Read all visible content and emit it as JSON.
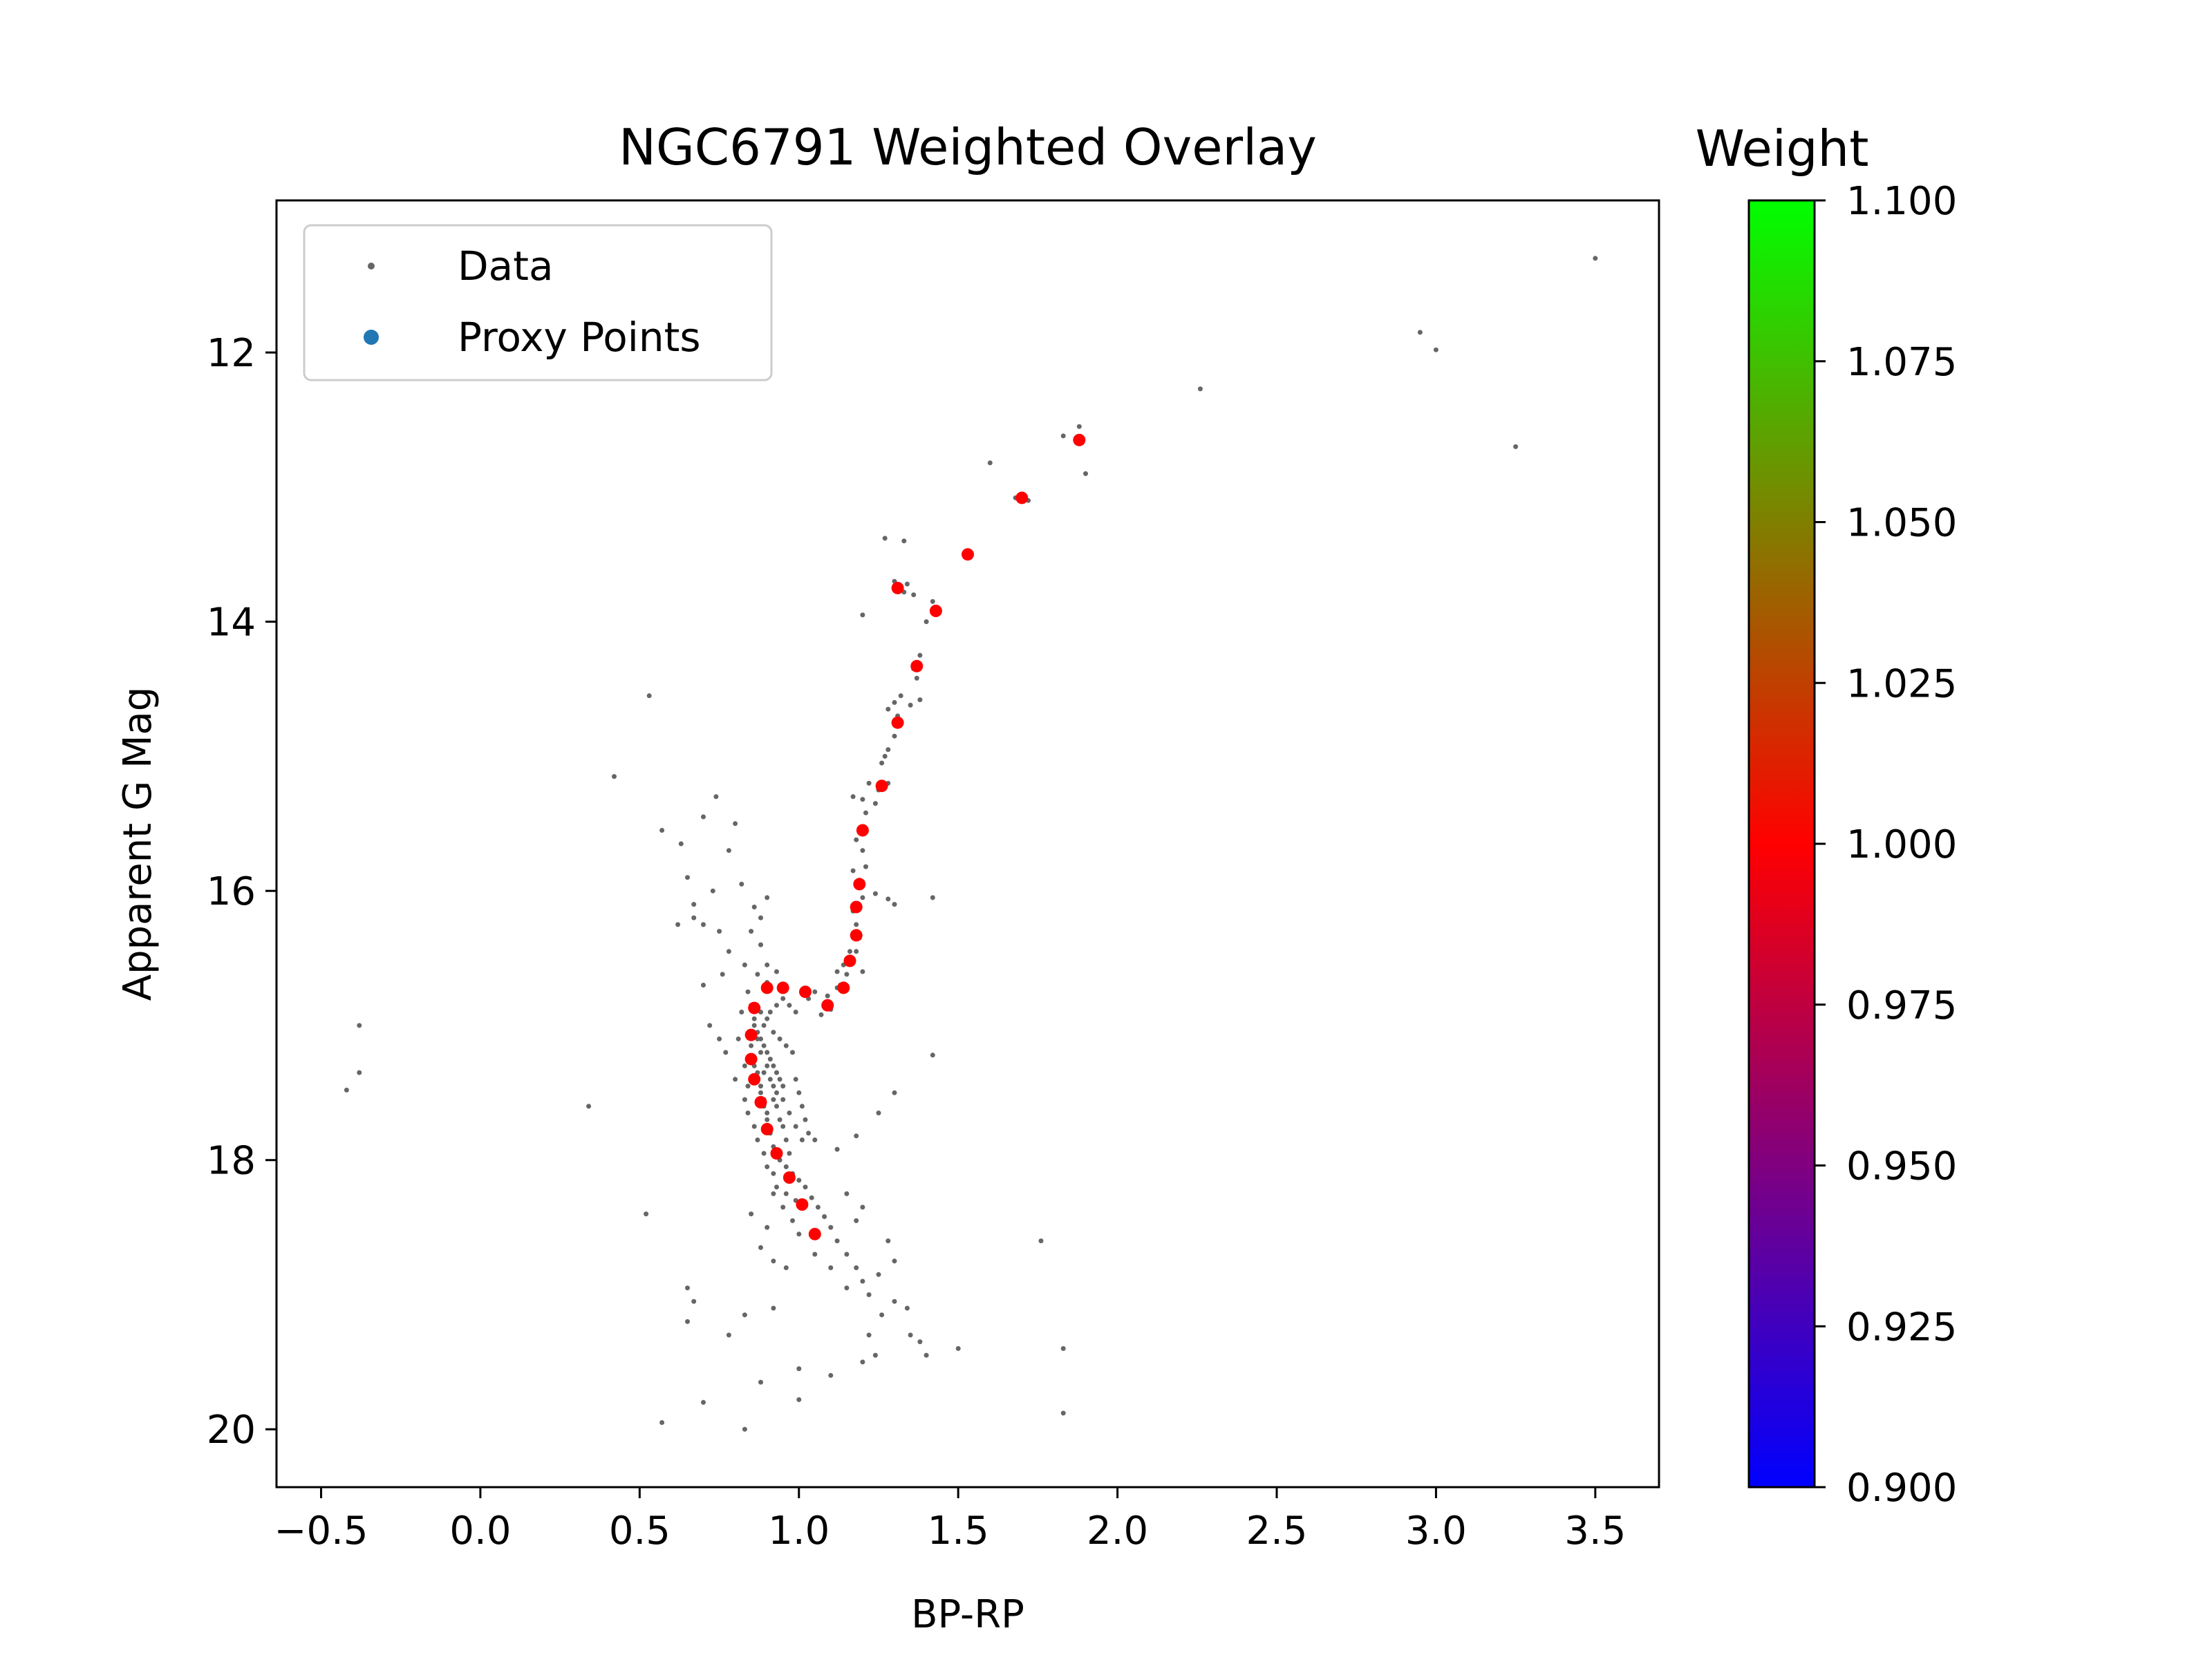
{
  "chart_data": {
    "type": "scatter",
    "title": "NGC6791 Weighted Overlay",
    "xlabel": "BP-RP",
    "ylabel": "Apparent G Mag",
    "xlim": [
      -0.64,
      3.7
    ],
    "ylim": [
      20.43,
      10.87
    ],
    "y_inverted": true,
    "x_ticks": [
      "−0.5",
      "0.0",
      "0.5",
      "1.0",
      "1.5",
      "2.0",
      "2.5",
      "3.0",
      "3.5"
    ],
    "x_tick_values": [
      -0.5,
      0.0,
      0.5,
      1.0,
      1.5,
      2.0,
      2.5,
      3.0,
      3.5
    ],
    "y_ticks": [
      "12",
      "14",
      "16",
      "18",
      "20"
    ],
    "y_tick_values": [
      12,
      14,
      16,
      18,
      20
    ],
    "grid": false,
    "legend": {
      "placement": "top-left",
      "entries": [
        {
          "label": "Data",
          "color": "#666666",
          "marker": "small-dot"
        },
        {
          "label": "Proxy Points",
          "color": "#1f77b4",
          "marker": "dot"
        }
      ]
    },
    "colorbar": {
      "title": "Weight",
      "range": [
        0.9,
        1.1
      ],
      "ticks": [
        "0.900",
        "0.925",
        "0.950",
        "0.975",
        "1.000",
        "1.025",
        "1.050",
        "1.075",
        "1.100"
      ],
      "tick_values": [
        0.9,
        0.925,
        0.95,
        0.975,
        1.0,
        1.025,
        1.05,
        1.075,
        1.1
      ],
      "colormap_stops": [
        "#0000ff",
        "#ff0000",
        "#00ff00"
      ]
    },
    "series": [
      {
        "name": "Data",
        "color": "#666666",
        "points": [
          [
            3.5,
            11.3
          ],
          [
            2.95,
            11.85
          ],
          [
            3.0,
            11.98
          ],
          [
            2.26,
            12.27
          ],
          [
            3.25,
            12.7
          ],
          [
            1.88,
            12.55
          ],
          [
            1.83,
            12.62
          ],
          [
            1.9,
            12.9
          ],
          [
            1.6,
            12.82
          ],
          [
            1.68,
            13.08
          ],
          [
            1.72,
            13.1
          ],
          [
            1.27,
            13.38
          ],
          [
            1.33,
            13.4
          ],
          [
            1.3,
            13.7
          ],
          [
            1.34,
            13.72
          ],
          [
            1.36,
            13.8
          ],
          [
            1.33,
            13.78
          ],
          [
            1.2,
            13.95
          ],
          [
            1.42,
            13.85
          ],
          [
            1.4,
            14.0
          ],
          [
            1.38,
            14.25
          ],
          [
            1.36,
            14.35
          ],
          [
            1.37,
            14.42
          ],
          [
            1.32,
            14.55
          ],
          [
            1.35,
            14.62
          ],
          [
            1.3,
            14.6
          ],
          [
            1.28,
            14.65
          ],
          [
            1.31,
            14.7
          ],
          [
            1.38,
            14.58
          ],
          [
            1.3,
            14.85
          ],
          [
            1.28,
            14.95
          ],
          [
            1.27,
            15.0
          ],
          [
            1.26,
            15.05
          ],
          [
            1.28,
            15.2
          ],
          [
            1.22,
            15.2
          ],
          [
            1.25,
            15.25
          ],
          [
            1.24,
            15.35
          ],
          [
            1.17,
            15.3
          ],
          [
            1.2,
            15.32
          ],
          [
            1.21,
            15.42
          ],
          [
            1.2,
            15.55
          ],
          [
            1.18,
            15.62
          ],
          [
            1.2,
            15.7
          ],
          [
            1.21,
            15.82
          ],
          [
            1.17,
            15.85
          ],
          [
            1.19,
            15.92
          ],
          [
            1.2,
            16.05
          ],
          [
            1.24,
            16.02
          ],
          [
            1.28,
            16.06
          ],
          [
            1.3,
            16.1
          ],
          [
            1.42,
            16.05
          ],
          [
            1.17,
            16.15
          ],
          [
            1.18,
            16.25
          ],
          [
            1.19,
            16.35
          ],
          [
            1.18,
            16.45
          ],
          [
            1.16,
            16.45
          ],
          [
            1.14,
            16.55
          ],
          [
            1.15,
            16.62
          ],
          [
            1.13,
            16.7
          ],
          [
            1.12,
            16.72
          ],
          [
            1.09,
            16.78
          ],
          [
            1.05,
            16.75
          ],
          [
            1.03,
            16.8
          ],
          [
            1.1,
            16.88
          ],
          [
            1.07,
            16.92
          ],
          [
            1.2,
            16.6
          ],
          [
            1.12,
            16.6
          ],
          [
            0.53,
            14.55
          ],
          [
            0.42,
            15.15
          ],
          [
            0.74,
            15.3
          ],
          [
            0.57,
            15.55
          ],
          [
            0.63,
            15.65
          ],
          [
            0.7,
            15.45
          ],
          [
            0.8,
            15.5
          ],
          [
            0.78,
            15.7
          ],
          [
            0.65,
            15.9
          ],
          [
            0.67,
            16.1
          ],
          [
            0.73,
            16.0
          ],
          [
            0.82,
            15.95
          ],
          [
            0.62,
            16.25
          ],
          [
            0.67,
            16.2
          ],
          [
            0.7,
            16.25
          ],
          [
            0.75,
            16.3
          ],
          [
            0.78,
            16.45
          ],
          [
            0.83,
            16.55
          ],
          [
            0.85,
            16.3
          ],
          [
            0.88,
            16.2
          ],
          [
            0.86,
            16.12
          ],
          [
            0.9,
            16.05
          ],
          [
            0.88,
            16.4
          ],
          [
            0.9,
            16.55
          ],
          [
            0.93,
            16.6
          ],
          [
            0.9,
            16.68
          ],
          [
            0.87,
            16.62
          ],
          [
            0.76,
            16.62
          ],
          [
            0.7,
            16.7
          ],
          [
            0.72,
            17.0
          ],
          [
            0.75,
            17.1
          ],
          [
            0.77,
            17.2
          ],
          [
            0.8,
            17.4
          ],
          [
            0.83,
            17.3
          ],
          [
            0.81,
            17.1
          ],
          [
            0.82,
            16.9
          ],
          [
            0.84,
            16.75
          ],
          [
            0.85,
            16.85
          ],
          [
            0.86,
            16.95
          ],
          [
            0.87,
            17.05
          ],
          [
            0.88,
            17.1
          ],
          [
            0.89,
            17.15
          ],
          [
            0.9,
            17.2
          ],
          [
            0.91,
            17.25
          ],
          [
            0.92,
            17.3
          ],
          [
            0.93,
            17.35
          ],
          [
            0.94,
            17.4
          ],
          [
            0.95,
            17.45
          ],
          [
            0.86,
            17.3
          ],
          [
            0.87,
            17.4
          ],
          [
            0.88,
            17.5
          ],
          [
            0.89,
            17.6
          ],
          [
            0.9,
            17.7
          ],
          [
            0.91,
            17.8
          ],
          [
            0.92,
            17.9
          ],
          [
            0.93,
            17.95
          ],
          [
            0.94,
            18.0
          ],
          [
            0.96,
            18.05
          ],
          [
            0.98,
            18.1
          ],
          [
            1.0,
            18.15
          ],
          [
            1.02,
            18.2
          ],
          [
            1.04,
            18.28
          ],
          [
            1.06,
            18.35
          ],
          [
            1.08,
            18.42
          ],
          [
            1.1,
            18.5
          ],
          [
            1.12,
            18.6
          ],
          [
            1.15,
            18.7
          ],
          [
            1.18,
            18.8
          ],
          [
            1.2,
            18.9
          ],
          [
            0.95,
            17.55
          ],
          [
            0.97,
            17.65
          ],
          [
            0.99,
            17.75
          ],
          [
            1.01,
            17.85
          ],
          [
            1.05,
            17.85
          ],
          [
            1.12,
            17.92
          ],
          [
            1.18,
            17.82
          ],
          [
            1.25,
            17.65
          ],
          [
            1.3,
            17.5
          ],
          [
            1.42,
            17.22
          ],
          [
            0.92,
            18.25
          ],
          [
            0.95,
            18.35
          ],
          [
            0.98,
            18.45
          ],
          [
            1.0,
            18.55
          ],
          [
            0.9,
            18.5
          ],
          [
            0.85,
            18.4
          ],
          [
            0.88,
            18.65
          ],
          [
            0.92,
            18.75
          ],
          [
            0.96,
            18.8
          ],
          [
            1.05,
            18.7
          ],
          [
            1.1,
            18.8
          ],
          [
            1.15,
            18.95
          ],
          [
            1.22,
            19.0
          ],
          [
            1.25,
            18.85
          ],
          [
            1.18,
            18.45
          ],
          [
            1.2,
            18.35
          ],
          [
            1.15,
            18.25
          ],
          [
            1.28,
            18.6
          ],
          [
            1.3,
            18.75
          ],
          [
            1.3,
            19.05
          ],
          [
            1.34,
            19.1
          ],
          [
            1.26,
            19.15
          ],
          [
            1.22,
            19.3
          ],
          [
            1.24,
            19.45
          ],
          [
            1.2,
            19.5
          ],
          [
            1.35,
            19.3
          ],
          [
            1.38,
            19.35
          ],
          [
            1.4,
            19.45
          ],
          [
            1.5,
            19.4
          ],
          [
            1.83,
            19.4
          ],
          [
            1.76,
            18.6
          ],
          [
            1.83,
            19.88
          ],
          [
            1.0,
            19.55
          ],
          [
            1.1,
            19.6
          ],
          [
            0.88,
            19.65
          ],
          [
            0.78,
            19.3
          ],
          [
            0.83,
            19.15
          ],
          [
            0.92,
            19.1
          ],
          [
            0.65,
            18.95
          ],
          [
            0.67,
            19.05
          ],
          [
            0.65,
            19.2
          ],
          [
            0.57,
            19.95
          ],
          [
            0.7,
            19.8
          ],
          [
            0.83,
            20.0
          ],
          [
            1.0,
            19.78
          ],
          [
            0.52,
            18.4
          ],
          [
            0.34,
            17.6
          ],
          [
            -0.38,
            17.0
          ],
          [
            -0.38,
            17.35
          ],
          [
            -0.42,
            17.48
          ],
          [
            0.86,
            17.0
          ],
          [
            0.88,
            16.9
          ],
          [
            0.9,
            16.95
          ],
          [
            0.92,
            17.05
          ],
          [
            0.94,
            17.1
          ],
          [
            0.96,
            17.15
          ],
          [
            0.85,
            17.15
          ],
          [
            0.86,
            17.25
          ],
          [
            0.87,
            17.35
          ],
          [
            0.88,
            17.45
          ],
          [
            0.89,
            17.55
          ],
          [
            0.9,
            17.65
          ],
          [
            0.92,
            17.55
          ],
          [
            0.93,
            17.6
          ],
          [
            0.94,
            17.7
          ],
          [
            0.95,
            17.75
          ],
          [
            0.96,
            17.85
          ],
          [
            0.97,
            17.95
          ],
          [
            0.91,
            17.4
          ],
          [
            0.92,
            17.45
          ],
          [
            0.93,
            17.5
          ],
          [
            0.89,
            17.35
          ],
          [
            0.9,
            17.3
          ],
          [
            0.88,
            17.2
          ],
          [
            0.87,
            17.1
          ],
          [
            0.89,
            17.0
          ],
          [
            0.91,
            16.9
          ],
          [
            0.93,
            16.85
          ],
          [
            0.95,
            16.8
          ],
          [
            0.97,
            16.85
          ],
          [
            0.99,
            16.9
          ],
          [
            0.98,
            17.2
          ],
          [
            0.99,
            17.4
          ],
          [
            1.0,
            17.5
          ],
          [
            1.01,
            17.6
          ],
          [
            1.02,
            17.7
          ],
          [
            1.03,
            17.8
          ],
          [
            0.84,
            17.45
          ],
          [
            0.83,
            17.55
          ],
          [
            0.84,
            17.65
          ],
          [
            0.86,
            17.75
          ],
          [
            0.87,
            17.85
          ],
          [
            0.89,
            17.95
          ],
          [
            0.9,
            18.05
          ],
          [
            0.92,
            18.1
          ],
          [
            0.93,
            18.2
          ],
          [
            0.96,
            18.25
          ],
          [
            0.99,
            18.3
          ]
        ]
      },
      {
        "name": "Proxy Points",
        "color": "#ff0000",
        "points": [
          [
            1.88,
            12.65
          ],
          [
            1.7,
            13.08
          ],
          [
            1.53,
            13.5
          ],
          [
            1.31,
            13.75
          ],
          [
            1.43,
            13.92
          ],
          [
            1.37,
            14.33
          ],
          [
            1.31,
            14.75
          ],
          [
            1.26,
            15.22
          ],
          [
            1.2,
            15.55
          ],
          [
            1.19,
            15.95
          ],
          [
            1.18,
            16.12
          ],
          [
            1.18,
            16.33
          ],
          [
            1.16,
            16.52
          ],
          [
            1.14,
            16.72
          ],
          [
            1.09,
            16.85
          ],
          [
            1.02,
            16.75
          ],
          [
            0.95,
            16.72
          ],
          [
            0.9,
            16.72
          ],
          [
            0.86,
            16.87
          ],
          [
            0.85,
            17.07
          ],
          [
            0.85,
            17.25
          ],
          [
            0.86,
            17.4
          ],
          [
            0.88,
            17.57
          ],
          [
            0.9,
            17.77
          ],
          [
            0.93,
            17.95
          ],
          [
            0.97,
            18.13
          ],
          [
            1.01,
            18.33
          ],
          [
            1.05,
            18.55
          ]
        ]
      }
    ]
  }
}
